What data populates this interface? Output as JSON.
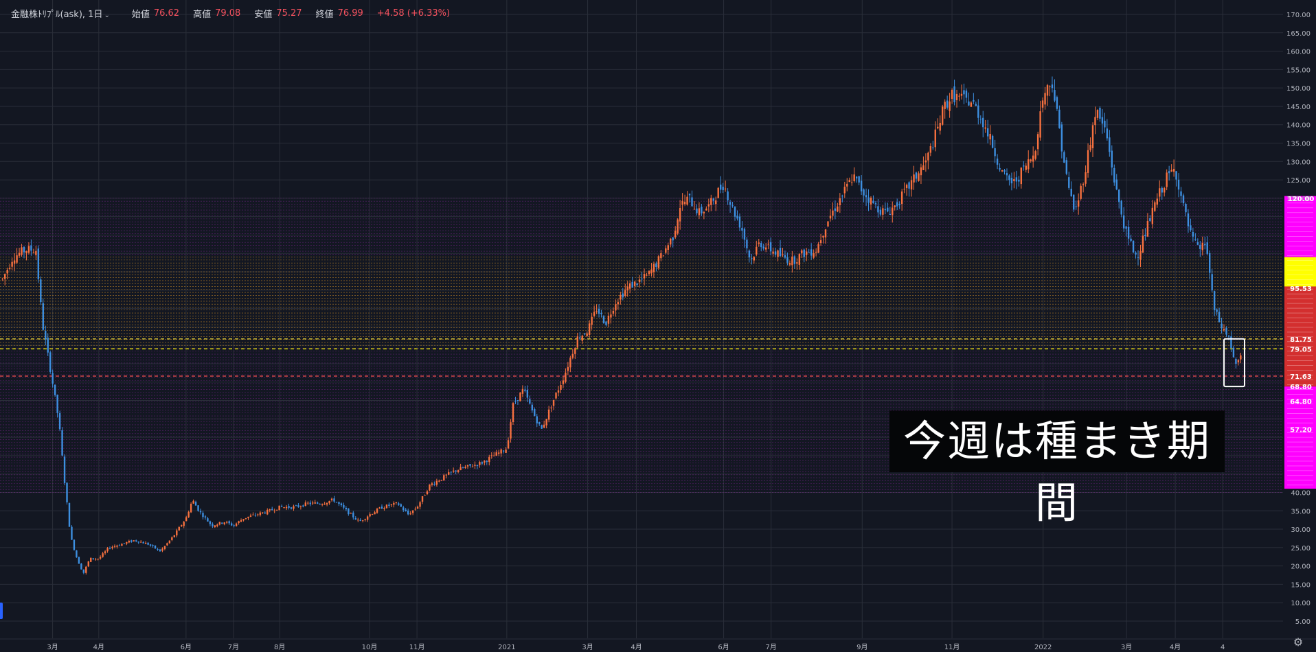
{
  "header": {
    "symbol": "金融株ﾄﾘﾌﾟﾙ(ask), 1日",
    "open_label": "始値",
    "open": "76.62",
    "high_label": "高値",
    "high": "79.08",
    "low_label": "安値",
    "low": "75.27",
    "close_label": "終値",
    "close": "76.99",
    "change": "+4.58 (+6.33%)"
  },
  "overlay_text": "今週は種まき期間",
  "colors": {
    "background": "#131722",
    "grid": "#2a2e39",
    "up": "#f7713f",
    "down": "#3d8fe0",
    "magenta": "#ff00ff",
    "yellow": "#ffff00",
    "red_zone": "#d32f2f",
    "line_purple": "#9c27b0"
  },
  "chart_data": {
    "type": "candlestick",
    "y_axis": {
      "range": [
        0,
        175
      ],
      "ticks": [
        "170.00",
        "165.00",
        "160.00",
        "155.00",
        "150.00",
        "145.00",
        "140.00",
        "135.00",
        "130.00",
        "125.00",
        "120.00",
        "40.00",
        "35.00",
        "30.00",
        "25.00",
        "20.00",
        "15.00",
        "10.00",
        "5.00"
      ],
      "tick_values": [
        170,
        165,
        160,
        155,
        150,
        145,
        140,
        135,
        130,
        125,
        120,
        40,
        35,
        30,
        25,
        20,
        15,
        10,
        5
      ]
    },
    "x_axis": {
      "labels": [
        "3月",
        "4月",
        "6月",
        "7月",
        "8月",
        "10月",
        "11月",
        "2021",
        "3月",
        "4月",
        "6月",
        "7月",
        "9月",
        "11月",
        "2022",
        "3月",
        "4月",
        "4"
      ],
      "label_positions": [
        0.041,
        0.077,
        0.145,
        0.182,
        0.218,
        0.288,
        0.325,
        0.395,
        0.458,
        0.496,
        0.564,
        0.601,
        0.672,
        0.742,
        0.813,
        0.878,
        0.916,
        0.953
      ]
    },
    "price_path": [
      [
        0.002,
        98
      ],
      [
        0.01,
        104
      ],
      [
        0.02,
        106
      ],
      [
        0.028,
        106
      ],
      [
        0.033,
        86
      ],
      [
        0.04,
        72
      ],
      [
        0.046,
        59
      ],
      [
        0.05,
        44
      ],
      [
        0.055,
        28
      ],
      [
        0.06,
        22
      ],
      [
        0.065,
        18
      ],
      [
        0.07,
        22
      ],
      [
        0.077,
        22
      ],
      [
        0.085,
        25
      ],
      [
        0.095,
        26
      ],
      [
        0.105,
        27
      ],
      [
        0.115,
        26
      ],
      [
        0.125,
        24
      ],
      [
        0.135,
        28
      ],
      [
        0.145,
        33
      ],
      [
        0.15,
        38
      ],
      [
        0.155,
        35
      ],
      [
        0.165,
        31
      ],
      [
        0.175,
        32
      ],
      [
        0.182,
        31
      ],
      [
        0.19,
        33
      ],
      [
        0.2,
        34
      ],
      [
        0.21,
        35
      ],
      [
        0.218,
        36
      ],
      [
        0.23,
        36
      ],
      [
        0.24,
        37
      ],
      [
        0.25,
        37
      ],
      [
        0.26,
        38
      ],
      [
        0.27,
        35
      ],
      [
        0.28,
        32
      ],
      [
        0.288,
        34
      ],
      [
        0.298,
        36
      ],
      [
        0.31,
        37
      ],
      [
        0.318,
        34
      ],
      [
        0.325,
        36
      ],
      [
        0.335,
        42
      ],
      [
        0.345,
        44
      ],
      [
        0.355,
        46
      ],
      [
        0.365,
        47
      ],
      [
        0.375,
        48
      ],
      [
        0.385,
        50
      ],
      [
        0.395,
        52
      ],
      [
        0.4,
        64
      ],
      [
        0.408,
        68
      ],
      [
        0.415,
        62
      ],
      [
        0.422,
        57
      ],
      [
        0.43,
        64
      ],
      [
        0.44,
        72
      ],
      [
        0.45,
        82
      ],
      [
        0.458,
        84
      ],
      [
        0.465,
        90
      ],
      [
        0.472,
        86
      ],
      [
        0.48,
        92
      ],
      [
        0.49,
        96
      ],
      [
        0.496,
        97
      ],
      [
        0.505,
        99
      ],
      [
        0.515,
        104
      ],
      [
        0.525,
        110
      ],
      [
        0.53,
        118
      ],
      [
        0.537,
        120
      ],
      [
        0.545,
        116
      ],
      [
        0.553,
        118
      ],
      [
        0.56,
        122
      ],
      [
        0.564,
        124
      ],
      [
        0.57,
        118
      ],
      [
        0.578,
        112
      ],
      [
        0.585,
        103
      ],
      [
        0.592,
        108
      ],
      [
        0.601,
        106
      ],
      [
        0.61,
        104
      ],
      [
        0.618,
        103
      ],
      [
        0.626,
        105
      ],
      [
        0.636,
        106
      ],
      [
        0.645,
        114
      ],
      [
        0.655,
        120
      ],
      [
        0.665,
        126
      ],
      [
        0.672,
        122
      ],
      [
        0.682,
        118
      ],
      [
        0.69,
        116
      ],
      [
        0.698,
        118
      ],
      [
        0.706,
        122
      ],
      [
        0.714,
        126
      ],
      [
        0.722,
        130
      ],
      [
        0.73,
        138
      ],
      [
        0.736,
        145
      ],
      [
        0.742,
        148
      ],
      [
        0.75,
        147
      ],
      [
        0.758,
        146
      ],
      [
        0.766,
        141
      ],
      [
        0.774,
        134
      ],
      [
        0.782,
        126
      ],
      [
        0.79,
        124
      ],
      [
        0.798,
        128
      ],
      [
        0.806,
        132
      ],
      [
        0.813,
        148
      ],
      [
        0.82,
        152
      ],
      [
        0.826,
        138
      ],
      [
        0.832,
        124
      ],
      [
        0.838,
        116
      ],
      [
        0.846,
        128
      ],
      [
        0.854,
        144
      ],
      [
        0.862,
        138
      ],
      [
        0.87,
        122
      ],
      [
        0.878,
        110
      ],
      [
        0.886,
        104
      ],
      [
        0.894,
        112
      ],
      [
        0.902,
        120
      ],
      [
        0.91,
        126
      ],
      [
        0.916,
        128
      ],
      [
        0.922,
        118
      ],
      [
        0.928,
        110
      ],
      [
        0.934,
        106
      ],
      [
        0.94,
        108
      ],
      [
        0.946,
        90
      ],
      [
        0.952,
        85
      ],
      [
        0.958,
        82
      ],
      [
        0.963,
        74
      ],
      [
        0.967,
        77
      ]
    ],
    "zone_price_labels": [
      "120.00",
      "95.53",
      "81.75",
      "79.05",
      "71.63",
      "68.80",
      "64.80",
      "57.20"
    ],
    "zone_price_values": [
      120.0,
      95.53,
      81.75,
      79.05,
      71.63,
      68.8,
      64.8,
      57.2
    ],
    "highlight_box": {
      "x_from": 0.954,
      "x_to": 0.97,
      "y_low": 68.8,
      "y_high": 81.75
    }
  }
}
